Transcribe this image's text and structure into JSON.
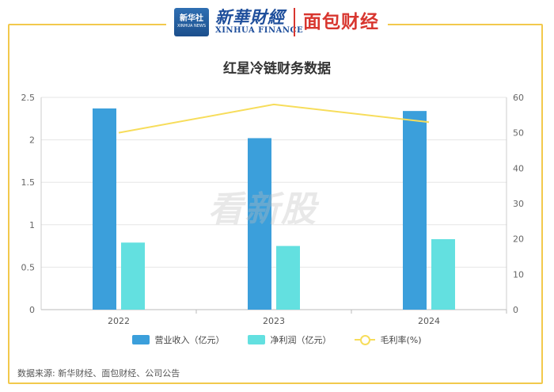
{
  "header": {
    "xinhua_logo_cn": "新华社",
    "xinhua_logo_en": "XINHUA NEWS",
    "brand_title": "新華財經",
    "brand_subtitle": "XINHUA FINANCE",
    "partner_logo": "面包财经"
  },
  "watermark": "看新股",
  "footer": "数据来源: 新华财经、面包财经、公司公告",
  "colors": {
    "revenue": "#3b9fdb",
    "net_profit": "#63e0e0",
    "gross_margin": "#f7dd5b",
    "frame": "#f2c94c"
  },
  "chart_data": {
    "type": "bar",
    "title": "红星冷链财务数据",
    "categories": [
      "2022",
      "2023",
      "2024"
    ],
    "series": [
      {
        "name": "营业收入（亿元）",
        "type": "bar",
        "axis": "left",
        "values": [
          2.37,
          2.02,
          2.34
        ]
      },
      {
        "name": "净利润（亿元）",
        "type": "bar",
        "axis": "left",
        "values": [
          0.79,
          0.75,
          0.83
        ]
      },
      {
        "name": "毛利率(%)",
        "type": "line",
        "axis": "right",
        "values": [
          50,
          58,
          53
        ]
      }
    ],
    "ylim": [
      0,
      2.5
    ],
    "yticks": [
      "0",
      "0.5",
      "1",
      "1.5",
      "2",
      "2.5"
    ],
    "y2lim": [
      0,
      60
    ],
    "y2ticks": [
      "0",
      "10",
      "20",
      "30",
      "40",
      "50",
      "60"
    ],
    "grid": true,
    "legend_position": "bottom"
  }
}
